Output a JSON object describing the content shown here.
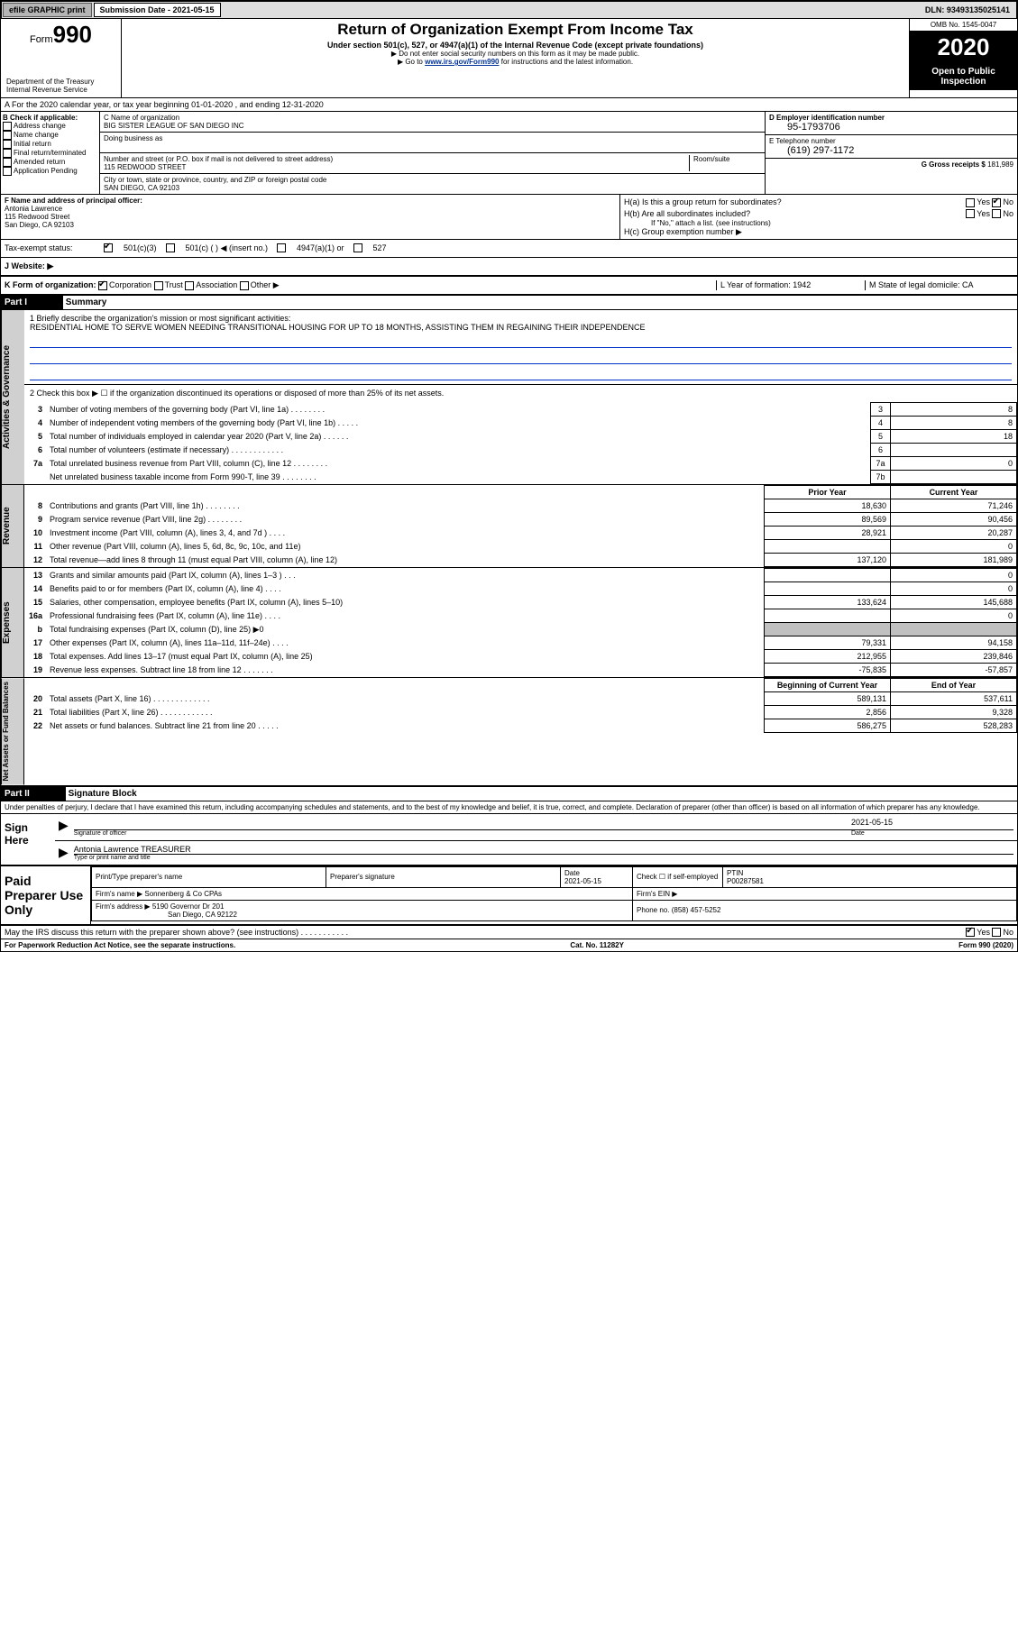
{
  "topbar": {
    "efile": "efile GRAPHIC print",
    "submission": "Submission Date - 2021-05-15",
    "dln": "DLN: 93493135025141"
  },
  "header": {
    "form_word": "Form",
    "form_num": "990",
    "title": "Return of Organization Exempt From Income Tax",
    "subtitle": "Under section 501(c), 527, or 4947(a)(1) of the Internal Revenue Code (except private foundations)",
    "note1": "▶ Do not enter social security numbers on this form as it may be made public.",
    "note2_pre": "▶ Go to ",
    "note2_link": "www.irs.gov/Form990",
    "note2_post": " for instructions and the latest information.",
    "dept": "Department of the Treasury\nInternal Revenue Service",
    "omb": "OMB No. 1545-0047",
    "year": "2020",
    "inspect": "Open to Public Inspection"
  },
  "rowA": "A For the 2020 calendar year, or tax year beginning 01-01-2020    , and ending 12-31-2020",
  "colB": {
    "title": "B Check if applicable:",
    "items": [
      "Address change",
      "Name change",
      "Initial return",
      "Final return/terminated",
      "Amended return",
      "Application Pending"
    ]
  },
  "colC": {
    "name_label": "C Name of organization",
    "name": "BIG SISTER LEAGUE OF SAN DIEGO INC",
    "dba_label": "Doing business as",
    "dba": "",
    "addr_label": "Number and street (or P.O. box if mail is not delivered to street address)",
    "room_label": "Room/suite",
    "addr": "115 REDWOOD STREET",
    "city_label": "City or town, state or province, country, and ZIP or foreign postal code",
    "city": "SAN DIEGO, CA  92103"
  },
  "colD": {
    "ein_label": "D Employer identification number",
    "ein": "95-1793706",
    "phone_label": "E Telephone number",
    "phone": "(619) 297-1172",
    "gross_label": "G Gross receipts $ ",
    "gross": "181,989"
  },
  "colF": {
    "label": "F  Name and address of principal officer:",
    "name": "Antonia Lawrence",
    "addr1": "115 Redwood Street",
    "addr2": "San Diego, CA  92103"
  },
  "colH": {
    "ha": "H(a)  Is this a group return for subordinates?",
    "ha_yes": "Yes",
    "ha_no": "No",
    "hb": "H(b)  Are all subordinates included?",
    "hb_yes": "Yes",
    "hb_no": "No",
    "hb_note": "If \"No,\" attach a list. (see instructions)",
    "hc": "H(c)  Group exemption number ▶"
  },
  "rowTax": {
    "label": "Tax-exempt status:",
    "o1": "501(c)(3)",
    "o2": "501(c) (   ) ◀ (insert no.)",
    "o3": "4947(a)(1) or",
    "o4": "527"
  },
  "rowWeb": {
    "label": "J   Website: ▶"
  },
  "rowK": {
    "k": "K Form of organization:",
    "k1": "Corporation",
    "k2": "Trust",
    "k3": "Association",
    "k4": "Other ▶",
    "l": "L Year of formation: 1942",
    "m": "M State of legal domicile: CA"
  },
  "part1": {
    "hdr": "Part I",
    "title": "Summary",
    "q1": "1  Briefly describe the organization's mission or most significant activities:",
    "q1_ans": "RESIDENTIAL HOME TO SERVE WOMEN NEEDING TRANSITIONAL HOUSING FOR UP TO 18 MONTHS, ASSISTING THEM IN REGAINING THEIR INDEPENDENCE",
    "q2": "2  Check this box ▶ ☐  if the organization discontinued its operations or disposed of more than 25% of its net assets.",
    "rows": [
      {
        "n": "3",
        "t": "Number of voting members of the governing body (Part VI, line 1a)  .   .   .   .   .   .   .   .",
        "ln": "3",
        "v": "8"
      },
      {
        "n": "4",
        "t": "Number of independent voting members of the governing body (Part VI, line 1b)  .   .   .   .   .",
        "ln": "4",
        "v": "8"
      },
      {
        "n": "5",
        "t": "Total number of individuals employed in calendar year 2020 (Part V, line 2a)  .   .   .   .   .   .",
        "ln": "5",
        "v": "18"
      },
      {
        "n": "6",
        "t": "Total number of volunteers (estimate if necessary)   .   .   .   .   .   .   .   .   .   .   .   .",
        "ln": "6",
        "v": ""
      },
      {
        "n": "7a",
        "t": "Total unrelated business revenue from Part VIII, column (C), line 12  .   .   .   .   .   .   .   .",
        "ln": "7a",
        "v": "0"
      },
      {
        "n": "",
        "t": "Net unrelated business taxable income from Form 990-T, line 39   .   .   .   .   .   .   .   .",
        "ln": "7b",
        "v": ""
      }
    ]
  },
  "revenue": {
    "side": "Revenue",
    "prior_hdr": "Prior Year",
    "curr_hdr": "Current Year",
    "rows": [
      {
        "n": "8",
        "t": "Contributions and grants (Part VIII, line 1h)   .   .   .   .   .   .   .   .",
        "p": "18,630",
        "c": "71,246"
      },
      {
        "n": "9",
        "t": "Program service revenue (Part VIII, line 2g)   .   .   .   .   .   .   .   .",
        "p": "89,569",
        "c": "90,456"
      },
      {
        "n": "10",
        "t": "Investment income (Part VIII, column (A), lines 3, 4, and 7d )   .   .   .   .",
        "p": "28,921",
        "c": "20,287"
      },
      {
        "n": "11",
        "t": "Other revenue (Part VIII, column (A), lines 5, 6d, 8c, 9c, 10c, and 11e)",
        "p": "",
        "c": "0"
      },
      {
        "n": "12",
        "t": "Total revenue—add lines 8 through 11 (must equal Part VIII, column (A), line 12)",
        "p": "137,120",
        "c": "181,989"
      }
    ]
  },
  "expenses": {
    "side": "Expenses",
    "rows": [
      {
        "n": "13",
        "t": "Grants and similar amounts paid (Part IX, column (A), lines 1–3 )   .   .   .",
        "p": "",
        "c": "0"
      },
      {
        "n": "14",
        "t": "Benefits paid to or for members (Part IX, column (A), line 4)   .   .   .   .",
        "p": "",
        "c": "0"
      },
      {
        "n": "15",
        "t": "Salaries, other compensation, employee benefits (Part IX, column (A), lines 5–10)",
        "p": "133,624",
        "c": "145,688"
      },
      {
        "n": "16a",
        "t": "Professional fundraising fees (Part IX, column (A), line 11e)   .   .   .   .",
        "p": "",
        "c": "0"
      },
      {
        "n": "b",
        "t": "Total fundraising expenses (Part IX, column (D), line 25) ▶0",
        "p": "GRAY",
        "c": "GRAY"
      },
      {
        "n": "17",
        "t": "Other expenses (Part IX, column (A), lines 11a–11d, 11f–24e)   .   .   .   .",
        "p": "79,331",
        "c": "94,158"
      },
      {
        "n": "18",
        "t": "Total expenses. Add lines 13–17 (must equal Part IX, column (A), line 25)",
        "p": "212,955",
        "c": "239,846"
      },
      {
        "n": "19",
        "t": "Revenue less expenses. Subtract line 18 from line 12  .   .   .   .   .   .   .",
        "p": "-75,835",
        "c": "-57,857"
      }
    ]
  },
  "netassets": {
    "side": "Net Assets or Fund Balances",
    "boy_hdr": "Beginning of Current Year",
    "eoy_hdr": "End of Year",
    "rows": [
      {
        "n": "20",
        "t": "Total assets (Part X, line 16)  .   .   .   .   .   .   .   .   .   .   .   .   .",
        "p": "589,131",
        "c": "537,611"
      },
      {
        "n": "21",
        "t": "Total liabilities (Part X, line 26)  .   .   .   .   .   .   .   .   .   .   .   .",
        "p": "2,856",
        "c": "9,328"
      },
      {
        "n": "22",
        "t": "Net assets or fund balances. Subtract line 21 from line 20  .   .   .   .   .",
        "p": "586,275",
        "c": "528,283"
      }
    ]
  },
  "part2": {
    "hdr": "Part II",
    "title": "Signature Block",
    "decl": "Under penalties of perjury, I declare that I have examined this return, including accompanying schedules and statements, and to the best of my knowledge and belief, it is true, correct, and complete. Declaration of preparer (other than officer) is based on all information of which preparer has any knowledge."
  },
  "sign": {
    "left": "Sign Here",
    "sig_label": "Signature of officer",
    "date": "2021-05-15",
    "date_label": "Date",
    "name": "Antonia Lawrence TREASURER",
    "name_label": "Type or print name and title"
  },
  "prep": {
    "left": "Paid Preparer Use Only",
    "c1": "Print/Type preparer's name",
    "c2": "Preparer's signature",
    "c3": "Date",
    "c3v": "2021-05-15",
    "c4": "Check ☐ if self-employed",
    "c5": "PTIN",
    "c5v": "P00287581",
    "firm_label": "Firm's name     ▶",
    "firm": "Sonnenberg & Co CPAs",
    "ein_label": "Firm's EIN ▶",
    "addr_label": "Firm's address ▶",
    "addr": "5190 Governor Dr 201",
    "addr2": "San Diego, CA  92122",
    "phone_label": "Phone no.",
    "phone": "(858) 457-5252"
  },
  "footer": {
    "irs_q": "May the IRS discuss this return with the preparer shown above? (see instructions)   .   .   .   .   .   .   .   .   .   .   .",
    "yes": "Yes",
    "no": "No",
    "pra": "For Paperwork Reduction Act Notice, see the separate instructions.",
    "cat": "Cat. No. 11282Y",
    "form": "Form 990 (2020)"
  },
  "act_gov_side": "Activities & Governance"
}
